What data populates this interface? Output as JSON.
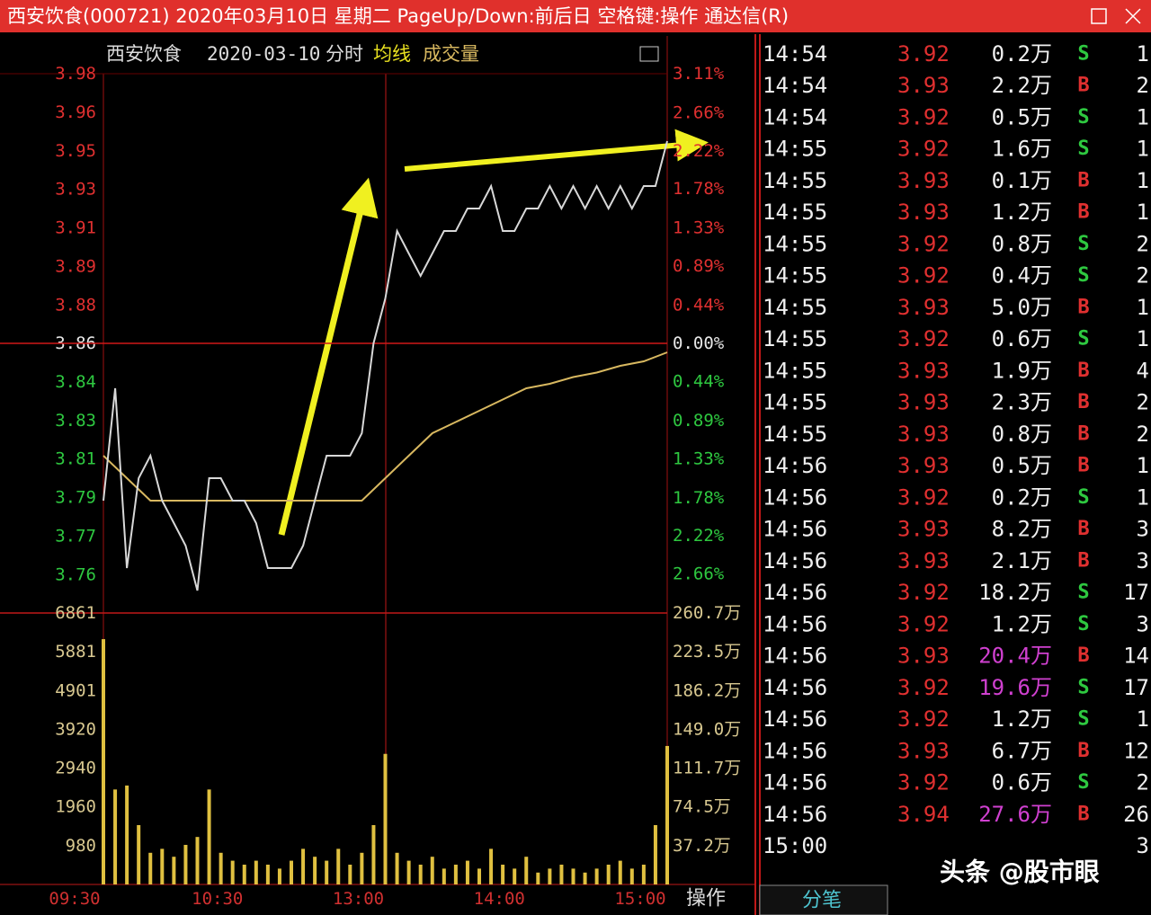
{
  "window": {
    "title": "西安饮食(000721) 2020年03月10日 星期二 PageUp/Down:前后日 空格键:操作 通达信(R)"
  },
  "chart": {
    "name": "西安饮食",
    "date": "2020-03-10",
    "mode": "分时",
    "avg_label": "均线",
    "vol_label": "成交量",
    "ylim": [
      3.74,
      3.98
    ],
    "price_ticks": [
      {
        "value": 3.98,
        "label": "3.98"
      },
      {
        "value": 3.9629,
        "label": "3.96"
      },
      {
        "value": 3.9457,
        "label": "3.95"
      },
      {
        "value": 3.9286,
        "label": "3.93"
      },
      {
        "value": 3.9114,
        "label": "3.91"
      },
      {
        "value": 3.8943,
        "label": "3.89"
      },
      {
        "value": 3.8771,
        "label": "3.88"
      },
      {
        "value": 3.86,
        "label": "3.86"
      },
      {
        "value": 3.8429,
        "label": "3.84"
      },
      {
        "value": 3.8257,
        "label": "3.83"
      },
      {
        "value": 3.8086,
        "label": "3.81"
      },
      {
        "value": 3.7914,
        "label": "3.79"
      },
      {
        "value": 3.7743,
        "label": "3.77"
      },
      {
        "value": 3.7571,
        "label": "3.76"
      }
    ],
    "pct_ticks": [
      {
        "value": 3.11,
        "label": "3.11%"
      },
      {
        "value": 2.66,
        "label": "2.66%"
      },
      {
        "value": 2.22,
        "label": "2.22%"
      },
      {
        "value": 1.78,
        "label": "1.78%"
      },
      {
        "value": 1.33,
        "label": "1.33%"
      },
      {
        "value": 0.89,
        "label": "0.89%"
      },
      {
        "value": 0.44,
        "label": "0.44%"
      },
      {
        "value": 0,
        "label": "0.00%"
      },
      {
        "value": -0.44,
        "label": "0.44%"
      },
      {
        "value": -0.89,
        "label": "0.89%"
      },
      {
        "value": -1.33,
        "label": "1.33%"
      },
      {
        "value": -1.78,
        "label": "1.78%"
      },
      {
        "value": -2.22,
        "label": "2.22%"
      },
      {
        "value": -2.66,
        "label": "2.66%"
      }
    ],
    "vlim": [
      0,
      6861
    ],
    "vol_ticks": [
      6861,
      5881,
      4901,
      3920,
      2940,
      1960,
      980
    ],
    "vol_ticks_right": [
      {
        "value": 260.7,
        "label": "260.7万"
      },
      {
        "value": 223.5,
        "label": "223.5万"
      },
      {
        "value": 186.2,
        "label": "186.2万"
      },
      {
        "value": 149.0,
        "label": "149.0万"
      },
      {
        "value": 111.7,
        "label": "111.7万"
      },
      {
        "value": 74.5,
        "label": "74.5万"
      },
      {
        "value": 37.2,
        "label": "37.2万"
      }
    ],
    "categories": [
      "09:30",
      "10:30",
      "13:00",
      "14:00",
      "15:00"
    ],
    "price": {
      "color": "#d8d8d8",
      "values": [
        3.79,
        3.84,
        3.76,
        3.8,
        3.81,
        3.79,
        3.78,
        3.77,
        3.75,
        3.8,
        3.8,
        3.79,
        3.79,
        3.78,
        3.76,
        3.76,
        3.76,
        3.77,
        3.79,
        3.81,
        3.81,
        3.81,
        3.82,
        3.86,
        3.88,
        3.91,
        3.9,
        3.89,
        3.9,
        3.91,
        3.91,
        3.92,
        3.92,
        3.93,
        3.91,
        3.91,
        3.92,
        3.92,
        3.93,
        3.92,
        3.93,
        3.92,
        3.93,
        3.92,
        3.93,
        3.92,
        3.93,
        3.93,
        3.95
      ]
    },
    "avg": {
      "color": "#d8b860",
      "values": [
        3.81,
        3.8,
        3.79,
        3.79,
        3.79,
        3.79,
        3.79,
        3.79,
        3.79,
        3.79,
        3.79,
        3.79,
        3.8,
        3.81,
        3.82,
        3.825,
        3.83,
        3.835,
        3.84,
        3.842,
        3.845,
        3.847,
        3.85,
        3.852,
        3.856
      ]
    },
    "volume": {
      "color": "#e0c040",
      "values": [
        6200,
        2400,
        2500,
        1500,
        800,
        900,
        700,
        1000,
        1200,
        2400,
        800,
        600,
        500,
        600,
        500,
        400,
        600,
        900,
        700,
        600,
        900,
        500,
        800,
        1500,
        3300,
        800,
        600,
        500,
        700,
        400,
        500,
        600,
        400,
        900,
        500,
        400,
        700,
        300,
        400,
        500,
        400,
        300,
        400,
        500,
        600,
        400,
        500,
        1500,
        3500
      ]
    }
  },
  "trades": {
    "big_color": "#d040d0",
    "rows": [
      {
        "time": "14:54",
        "price": "3.92",
        "vol": "0.2万",
        "side": "S",
        "count": "1"
      },
      {
        "time": "14:54",
        "price": "3.93",
        "vol": "2.2万",
        "side": "B",
        "count": "2"
      },
      {
        "time": "14:54",
        "price": "3.92",
        "vol": "0.5万",
        "side": "S",
        "count": "1"
      },
      {
        "time": "14:55",
        "price": "3.92",
        "vol": "1.6万",
        "side": "S",
        "count": "1"
      },
      {
        "time": "14:55",
        "price": "3.93",
        "vol": "0.1万",
        "side": "B",
        "count": "1"
      },
      {
        "time": "14:55",
        "price": "3.93",
        "vol": "1.2万",
        "side": "B",
        "count": "1"
      },
      {
        "time": "14:55",
        "price": "3.92",
        "vol": "0.8万",
        "side": "S",
        "count": "2"
      },
      {
        "time": "14:55",
        "price": "3.92",
        "vol": "0.4万",
        "side": "S",
        "count": "2"
      },
      {
        "time": "14:55",
        "price": "3.93",
        "vol": "5.0万",
        "side": "B",
        "count": "1"
      },
      {
        "time": "14:55",
        "price": "3.92",
        "vol": "0.6万",
        "side": "S",
        "count": "1"
      },
      {
        "time": "14:55",
        "price": "3.93",
        "vol": "1.9万",
        "side": "B",
        "count": "4"
      },
      {
        "time": "14:55",
        "price": "3.93",
        "vol": "2.3万",
        "side": "B",
        "count": "2"
      },
      {
        "time": "14:55",
        "price": "3.93",
        "vol": "0.8万",
        "side": "B",
        "count": "2"
      },
      {
        "time": "14:56",
        "price": "3.93",
        "vol": "0.5万",
        "side": "B",
        "count": "1"
      },
      {
        "time": "14:56",
        "price": "3.92",
        "vol": "0.2万",
        "side": "S",
        "count": "1"
      },
      {
        "time": "14:56",
        "price": "3.93",
        "vol": "8.2万",
        "side": "B",
        "count": "3"
      },
      {
        "time": "14:56",
        "price": "3.93",
        "vol": "2.1万",
        "side": "B",
        "count": "3"
      },
      {
        "time": "14:56",
        "price": "3.92",
        "vol": "18.2万",
        "side": "S",
        "count": "17"
      },
      {
        "time": "14:56",
        "price": "3.92",
        "vol": "1.2万",
        "side": "S",
        "count": "3"
      },
      {
        "time": "14:56",
        "price": "3.93",
        "vol": "20.4万",
        "side": "B",
        "count": "14",
        "big": true
      },
      {
        "time": "14:56",
        "price": "3.92",
        "vol": "19.6万",
        "side": "S",
        "count": "17",
        "big": true
      },
      {
        "time": "14:56",
        "price": "3.92",
        "vol": "1.2万",
        "side": "S",
        "count": "1"
      },
      {
        "time": "14:56",
        "price": "3.93",
        "vol": "6.7万",
        "side": "B",
        "count": "12"
      },
      {
        "time": "14:56",
        "price": "3.92",
        "vol": "0.6万",
        "side": "S",
        "count": "2"
      },
      {
        "time": "14:56",
        "price": "3.94",
        "vol": "27.6万",
        "side": "B",
        "count": "26",
        "big": true
      },
      {
        "time": "15:00",
        "count": "3"
      }
    ]
  },
  "tabs": [
    "操作",
    "分笔"
  ],
  "watermark": "头条 @股市眼"
}
